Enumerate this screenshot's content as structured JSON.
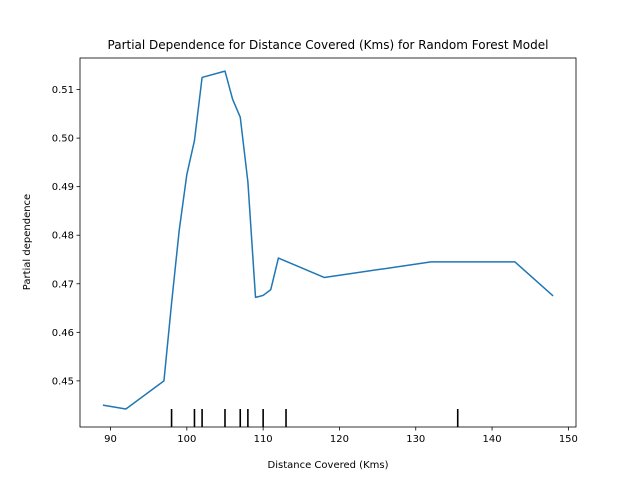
{
  "chart_data": {
    "type": "line",
    "title": "Partial Dependence for Distance Covered (Kms) for Random Forest Model",
    "xlabel": "Distance Covered (Kms)",
    "ylabel": "Partial dependence",
    "xlim": [
      86,
      151
    ],
    "ylim": [
      0.4405,
      0.5165
    ],
    "xticks": [
      90,
      100,
      110,
      120,
      130,
      140,
      150
    ],
    "xtick_labels": [
      "90",
      "100",
      "110",
      "120",
      "130",
      "140",
      "150"
    ],
    "yticks": [
      0.45,
      0.46,
      0.47,
      0.48,
      0.49,
      0.5,
      0.51
    ],
    "ytick_labels": [
      "0.45",
      "0.46",
      "0.47",
      "0.48",
      "0.49",
      "0.50",
      "0.51"
    ],
    "grid": false,
    "line_color": "#1f77b4",
    "series": [
      {
        "x": [
          89,
          92,
          97,
          98,
          99,
          100,
          101,
          102,
          105,
          106,
          107,
          108,
          109,
          110,
          111,
          112,
          118,
          132,
          143,
          148
        ],
        "y": [
          0.445,
          0.4442,
          0.45,
          0.466,
          0.481,
          0.4925,
          0.4995,
          0.5125,
          0.5138,
          0.508,
          0.5043,
          0.491,
          0.4672,
          0.4676,
          0.4688,
          0.4753,
          0.4713,
          0.4745,
          0.4745,
          0.4675
        ]
      }
    ],
    "rug_x": [
      98,
      101,
      102,
      105,
      107,
      108,
      110,
      113,
      135.5
    ]
  }
}
